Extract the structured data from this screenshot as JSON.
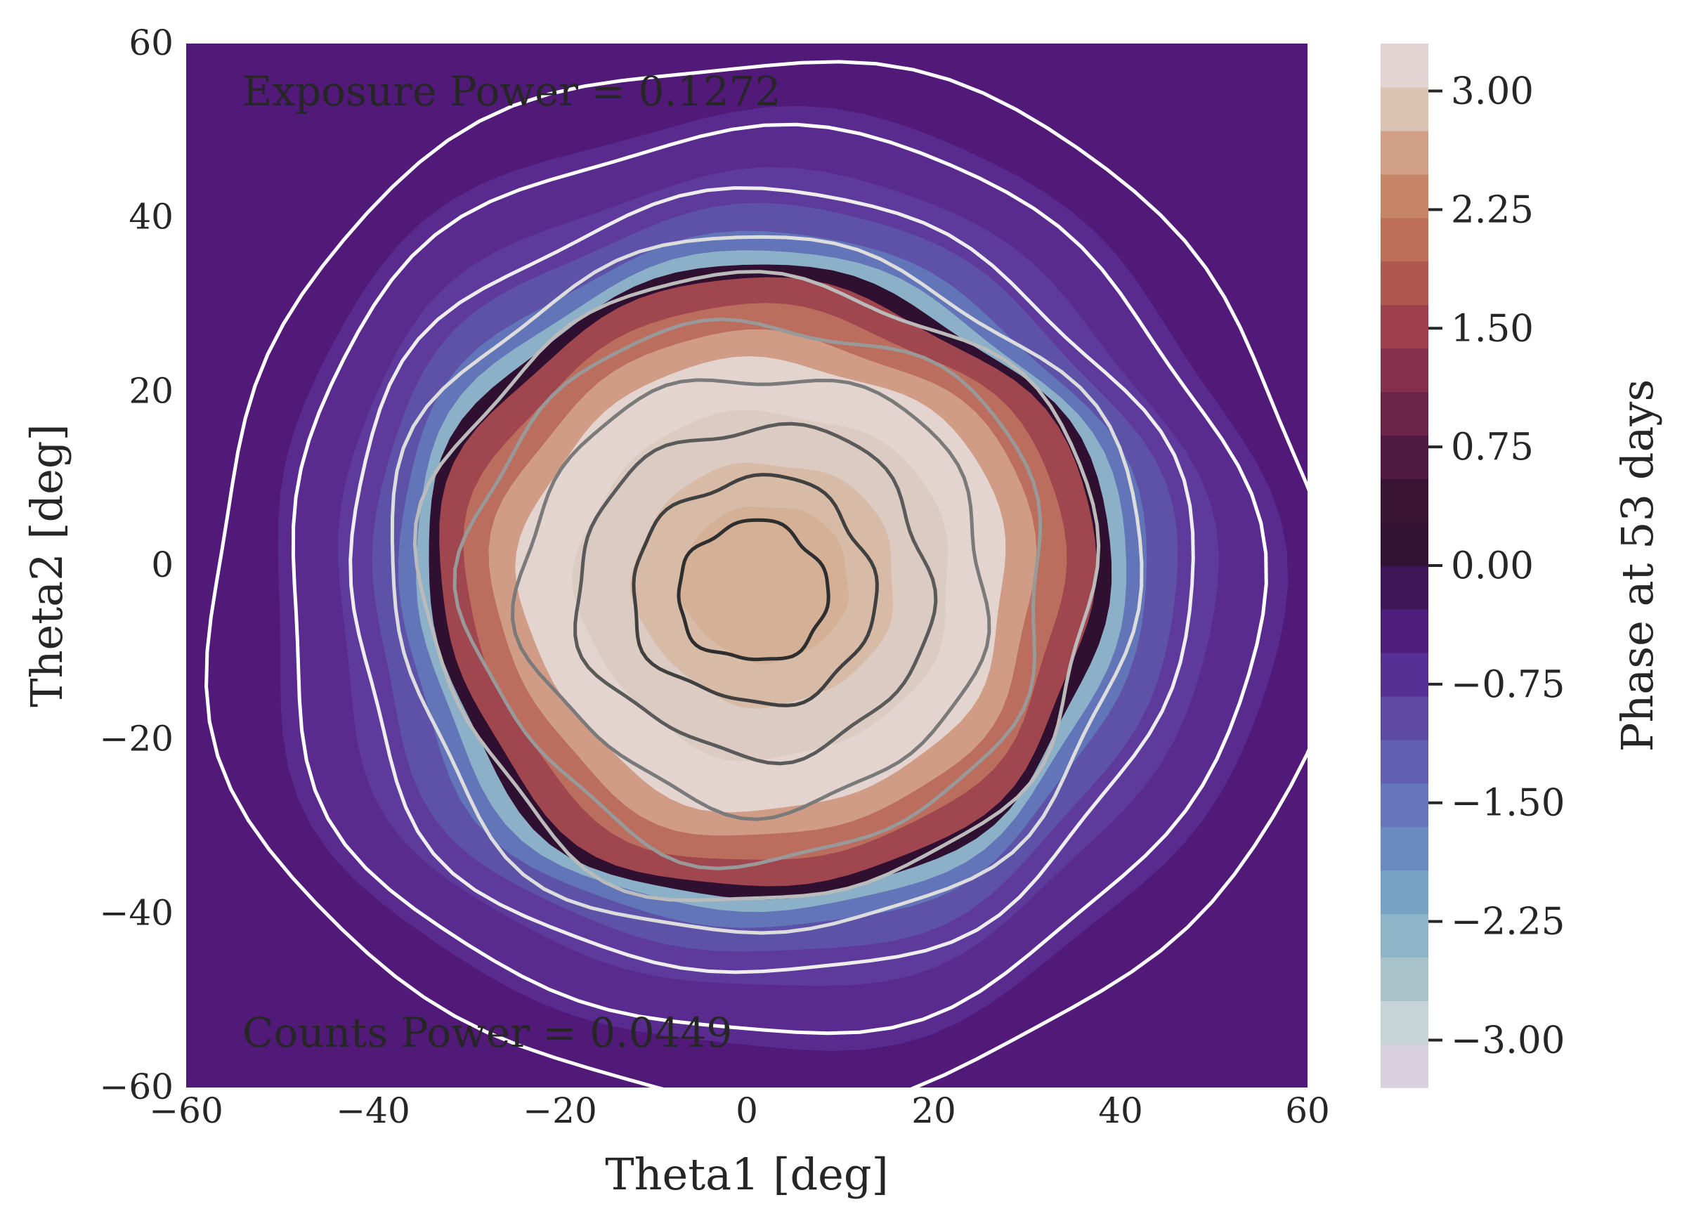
{
  "chart_data": {
    "type": "heatmap",
    "title": "",
    "xlabel": "Theta1 [deg]",
    "ylabel": "Theta2 [deg]",
    "xlim": [
      -60,
      60
    ],
    "ylim": [
      -60,
      60
    ],
    "xticks": [
      -60,
      -40,
      -20,
      0,
      20,
      40,
      60
    ],
    "yticks": [
      -60,
      -40,
      -20,
      0,
      20,
      40,
      60
    ],
    "xtick_labels": [
      "−60",
      "−40",
      "−20",
      "0",
      "20",
      "40",
      "60"
    ],
    "ytick_labels": [
      "−60",
      "−40",
      "−20",
      "0",
      "20",
      "40",
      "60"
    ],
    "grid": false,
    "annotations": [
      "Exposure Power = 0.1272",
      "Counts Power = 0.0449"
    ],
    "field": {
      "description_of_field": "filled contours of phase over Theta1/Theta2",
      "background_value": -0.5,
      "center": [
        2,
        -2
      ]
    },
    "overlay_contours": {
      "radii_deg": [
        60,
        52,
        45,
        40,
        36,
        31,
        25,
        19,
        13,
        8
      ],
      "colors": [
        "#ffffff",
        "#ffffff",
        "#eeeeee",
        "#dddddd",
        "#bbbbbb",
        "#999999",
        "#7a7a7a",
        "#5a5a5a",
        "#404040",
        "#2e2e2e"
      ]
    },
    "colorbar": {
      "label": "Phase at 53 days",
      "range": [
        -3.3,
        3.3
      ],
      "ticks": [
        3.0,
        2.25,
        1.5,
        0.75,
        0.0,
        -0.75,
        -1.5,
        -2.25,
        -3.0
      ],
      "tick_labels": [
        "3.00",
        "2.25",
        "1.50",
        "0.75",
        "0.00",
        "−0.75",
        "−1.50",
        "−2.25",
        "−3.00"
      ],
      "levels": 24,
      "colormap": "twilight_shifted"
    }
  }
}
